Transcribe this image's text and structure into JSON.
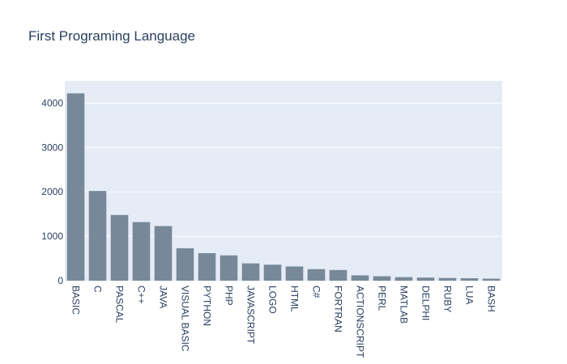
{
  "chart_data": {
    "type": "bar",
    "title": "First Programing Language",
    "xlabel": "",
    "ylabel": "",
    "categories": [
      "BASIC",
      "C",
      "PASCAL",
      "C++",
      "JAVA",
      "VISUAL BASIC",
      "PYTHON",
      "PHP",
      "JAVASCRIPT",
      "LOGO",
      "HTML",
      "C#",
      "FORTRAN",
      "ACTIONSCRIPT",
      "PERL",
      "MATLAB",
      "DELPHI",
      "RUBY",
      "LUA",
      "BASH"
    ],
    "values": [
      4220,
      2020,
      1480,
      1320,
      1230,
      730,
      620,
      570,
      390,
      360,
      320,
      260,
      240,
      120,
      100,
      80,
      70,
      60,
      55,
      45
    ],
    "ylim": [
      0,
      4500
    ],
    "yticks": [
      0,
      1000,
      2000,
      3000,
      4000
    ],
    "ytick_labels": [
      "0",
      "1000",
      "2000",
      "3000",
      "4000"
    ],
    "grid": true,
    "colors": {
      "bar": "#778899",
      "plot_bg": "#e5ecf6",
      "grid": "#ffffff",
      "text": "#2a3f5f"
    }
  }
}
